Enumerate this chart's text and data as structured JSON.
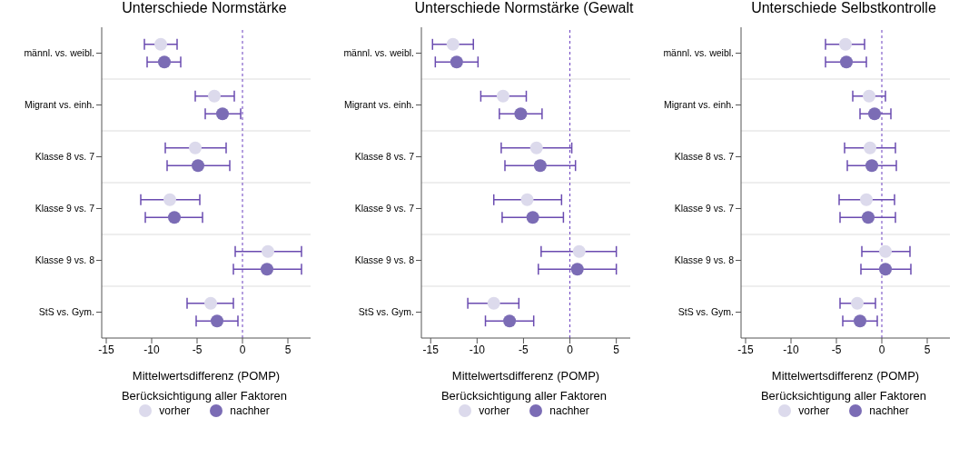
{
  "chart_data": [
    {
      "type": "scatter",
      "title": "Unterschiede Normstärke",
      "orientation": "horizontal",
      "marker": "circle",
      "categories": [
        "männl. vs. weibl.",
        "Migrant vs. einh.",
        "Klasse 8 vs. 7",
        "Klasse 9 vs. 7",
        "Klasse 9 vs. 8",
        "StS vs. Gym."
      ],
      "xlabel": "Mittelwertsdifferenz (POMP)",
      "xlim": [
        -15.5,
        7.5
      ],
      "xticks": [
        -15,
        -10,
        -5,
        0,
        5
      ],
      "grid": "y",
      "legend": "bottom",
      "legend_title": "Berücksichtigung aller Faktoren",
      "ref_lines": [
        {
          "axis": "x",
          "value": 0,
          "color": "#6a3fbf",
          "line_style": "dashed"
        }
      ],
      "series": [
        {
          "name": "vorher",
          "color": "#dcdaec",
          "values": [
            -9.0,
            -3.1,
            -5.2,
            -8.0,
            2.8,
            -3.5
          ],
          "errors": [
            [
              -10.8,
              -7.2
            ],
            [
              -5.2,
              -0.9
            ],
            [
              -8.5,
              -1.8
            ],
            [
              -11.2,
              -4.7
            ],
            [
              -0.8,
              6.5
            ],
            [
              -6.1,
              -1.0
            ]
          ]
        },
        {
          "name": "nachher",
          "color": "#7b6cb5",
          "values": [
            -8.6,
            -2.2,
            -4.9,
            -7.5,
            2.7,
            -2.8
          ],
          "errors": [
            [
              -10.5,
              -6.8
            ],
            [
              -4.1,
              -0.2
            ],
            [
              -8.3,
              -1.4
            ],
            [
              -10.7,
              -4.4
            ],
            [
              -1.0,
              6.5
            ],
            [
              -5.1,
              -0.5
            ]
          ]
        }
      ]
    },
    {
      "type": "scatter",
      "title": "Unterschiede Normstärke (Gewalt",
      "orientation": "horizontal",
      "marker": "circle",
      "categories": [
        "männl. vs. weibl.",
        "Migrant vs. einh.",
        "Klasse 8 vs. 7",
        "Klasse 9 vs. 7",
        "Klasse 9 vs. 8",
        "StS vs. Gym."
      ],
      "xlabel": "Mittelwertsdifferenz (POMP)",
      "xlim": [
        -16,
        6.5
      ],
      "xticks": [
        -15,
        -10,
        -5,
        0,
        5
      ],
      "grid": "y",
      "legend": "bottom",
      "legend_title": "Berücksichtigung aller Faktoren",
      "ref_lines": [
        {
          "axis": "x",
          "value": 0,
          "color": "#6a3fbf",
          "line_style": "dashed"
        }
      ],
      "series": [
        {
          "name": "vorher",
          "color": "#dcdaec",
          "values": [
            -12.6,
            -7.2,
            -3.6,
            -4.6,
            1.0,
            -8.2
          ],
          "errors": [
            [
              -14.8,
              -10.4
            ],
            [
              -9.6,
              -4.7
            ],
            [
              -7.4,
              0.2
            ],
            [
              -8.2,
              -0.9
            ],
            [
              -3.1,
              5.0
            ],
            [
              -11.0,
              -5.5
            ]
          ]
        },
        {
          "name": "nachher",
          "color": "#7b6cb5",
          "values": [
            -12.2,
            -5.3,
            -3.2,
            -4.0,
            0.8,
            -6.5
          ],
          "errors": [
            [
              -14.5,
              -9.9
            ],
            [
              -7.6,
              -3.0
            ],
            [
              -7.0,
              0.6
            ],
            [
              -7.3,
              -0.7
            ],
            [
              -3.4,
              5.0
            ],
            [
              -9.1,
              -3.9
            ]
          ]
        }
      ]
    },
    {
      "type": "scatter",
      "title": "Unterschiede Selbstkontrolle",
      "orientation": "horizontal",
      "marker": "circle",
      "categories": [
        "männl. vs. weibl.",
        "Migrant vs. einh.",
        "Klasse 8 vs. 7",
        "Klasse 9 vs. 7",
        "Klasse 9 vs. 8",
        "StS vs. Gym."
      ],
      "xlabel": "Mittelwertsdifferenz (POMP)",
      "xlim": [
        -15.5,
        7.5
      ],
      "xticks": [
        -15,
        -10,
        -5,
        0,
        5
      ],
      "grid": "y",
      "legend": "bottom",
      "legend_title": "Berücksichtigung aller Faktoren",
      "ref_lines": [
        {
          "axis": "x",
          "value": 0,
          "color": "#6a3fbf",
          "line_style": "dashed"
        }
      ],
      "series": [
        {
          "name": "vorher",
          "color": "#dcdaec",
          "values": [
            -4.0,
            -1.4,
            -1.3,
            -1.7,
            0.4,
            -2.7
          ],
          "errors": [
            [
              -6.2,
              -1.9
            ],
            [
              -3.2,
              0.4
            ],
            [
              -4.1,
              1.5
            ],
            [
              -4.7,
              1.4
            ],
            [
              -2.2,
              3.1
            ],
            [
              -4.6,
              -0.7
            ]
          ]
        },
        {
          "name": "nachher",
          "color": "#7b6cb5",
          "values": [
            -3.9,
            -0.8,
            -1.1,
            -1.5,
            0.4,
            -2.4
          ],
          "errors": [
            [
              -6.2,
              -1.7
            ],
            [
              -2.4,
              1.0
            ],
            [
              -3.8,
              1.6
            ],
            [
              -4.6,
              1.5
            ],
            [
              -2.3,
              3.2
            ],
            [
              -4.3,
              -0.5
            ]
          ]
        }
      ]
    }
  ]
}
